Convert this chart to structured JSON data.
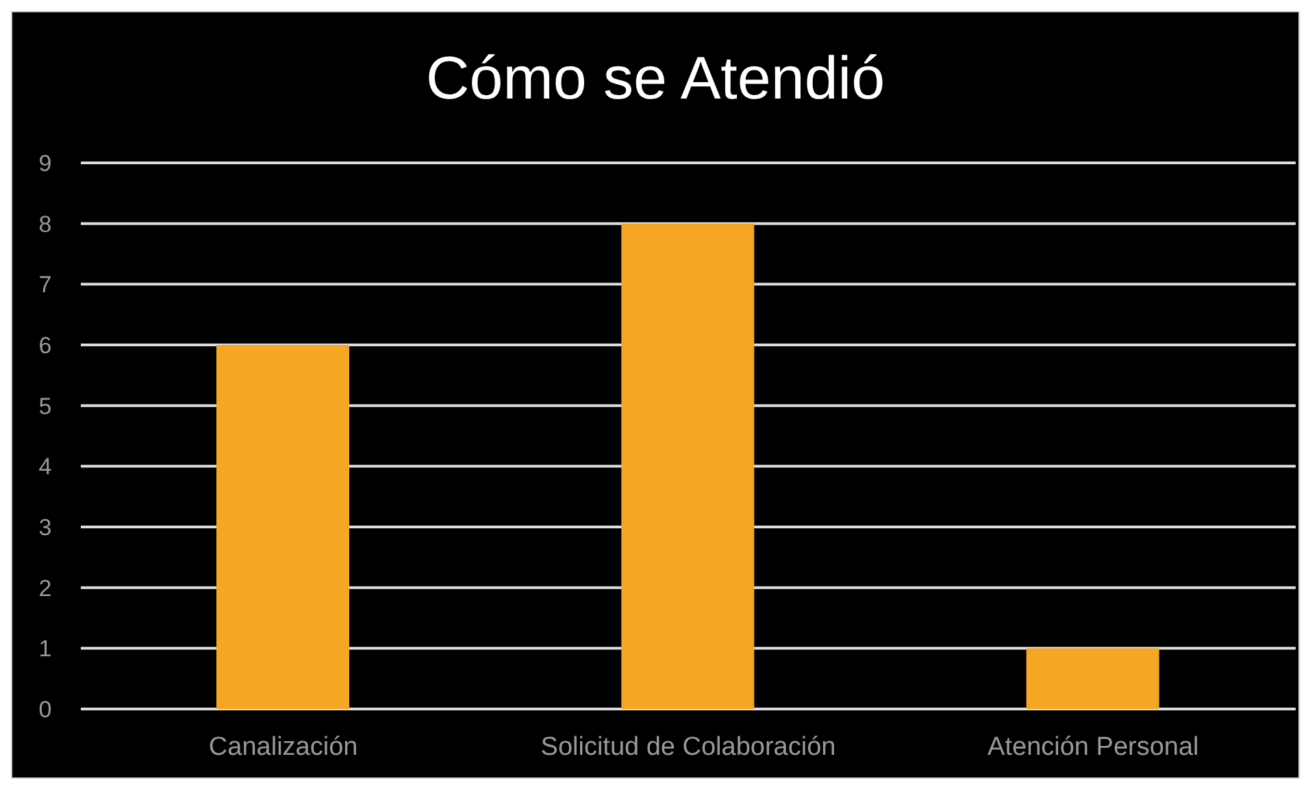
{
  "chart_data": {
    "type": "bar",
    "title": "Cómo se Atendió",
    "categories": [
      "Canalización",
      "Solicitud de Colaboración",
      "Atención Personal"
    ],
    "values": [
      6,
      8,
      1
    ],
    "color": "#f5a623",
    "ylim": [
      0,
      9
    ],
    "yticks": [
      0,
      1,
      2,
      3,
      4,
      5,
      6,
      7,
      8,
      9
    ],
    "grid": "y",
    "legend": false
  }
}
